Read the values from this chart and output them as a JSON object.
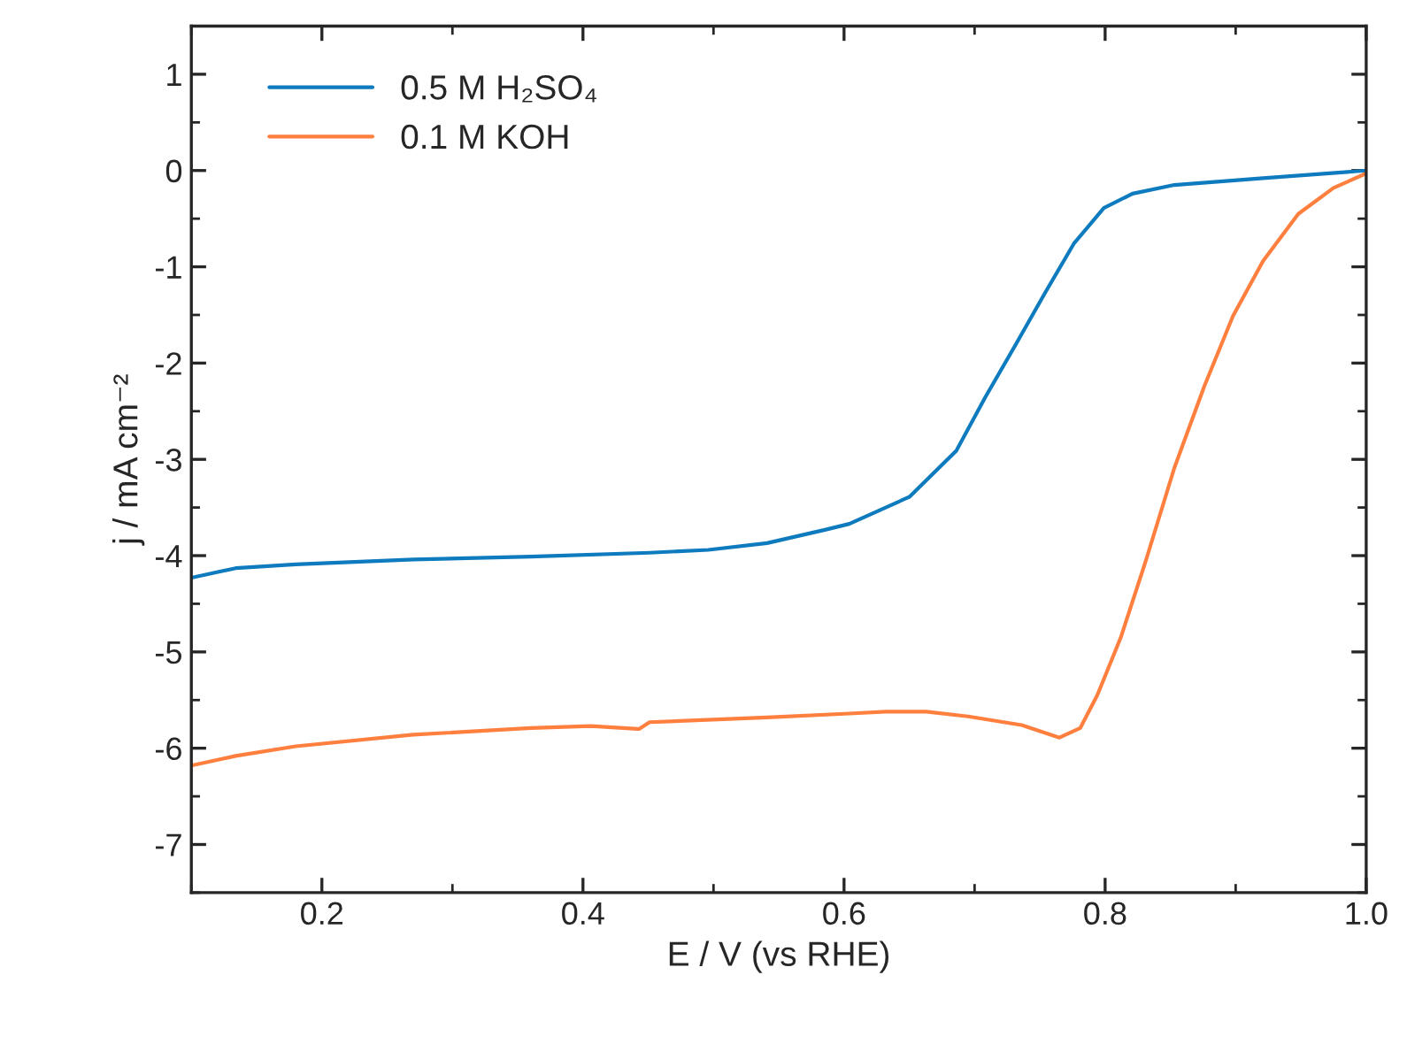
{
  "chart_data": {
    "type": "line",
    "xlabel": "E / V (vs RHE)",
    "ylabel": "j / mA cm⁻²",
    "xlim": [
      0.1,
      1.0
    ],
    "xticks": [
      0.2,
      0.4,
      0.6,
      0.8,
      {
        "value": 1.0,
        "label": "1.0"
      }
    ],
    "ylim": [
      -7.5,
      1.5
    ],
    "yticks": [
      -7,
      -6,
      -5,
      -4,
      -3,
      -2,
      -1,
      0,
      1
    ],
    "legend": "top left",
    "grid": false,
    "line_style": "solid",
    "marker": "none",
    "series": [
      {
        "name": "0.5 M H₂SO₄",
        "color": "#0e7bbf",
        "x": [
          0.1,
          0.134,
          0.18,
          0.27,
          0.36,
          0.451,
          0.496,
          0.541,
          0.586,
          0.604,
          0.65,
          0.686,
          0.708,
          0.731,
          0.754,
          0.776,
          0.799,
          0.821,
          0.853,
          0.921,
          1.0
        ],
        "values": [
          -4.23,
          -4.13,
          -4.09,
          -4.04,
          -4.01,
          -3.97,
          -3.94,
          -3.87,
          -3.73,
          -3.67,
          -3.39,
          -2.91,
          -2.36,
          -1.82,
          -1.27,
          -0.76,
          -0.39,
          -0.24,
          -0.15,
          -0.08,
          0.0
        ]
      },
      {
        "name": "0.1 M KOH",
        "color": "#ff7f3f",
        "x": [
          0.1,
          0.134,
          0.18,
          0.27,
          0.36,
          0.406,
          0.442,
          0.443,
          0.451,
          0.541,
          0.604,
          0.632,
          0.663,
          0.695,
          0.736,
          0.765,
          0.781,
          0.794,
          0.812,
          0.831,
          0.853,
          0.876,
          0.898,
          0.921,
          0.948,
          0.975,
          1.0
        ],
        "values": [
          -6.18,
          -6.08,
          -5.98,
          -5.86,
          -5.79,
          -5.77,
          -5.8,
          -5.8,
          -5.73,
          -5.68,
          -5.64,
          -5.62,
          -5.62,
          -5.67,
          -5.76,
          -5.89,
          -5.79,
          -5.45,
          -4.85,
          -4.06,
          -3.09,
          -2.24,
          -1.51,
          -0.94,
          -0.45,
          -0.18,
          -0.03
        ]
      }
    ]
  }
}
